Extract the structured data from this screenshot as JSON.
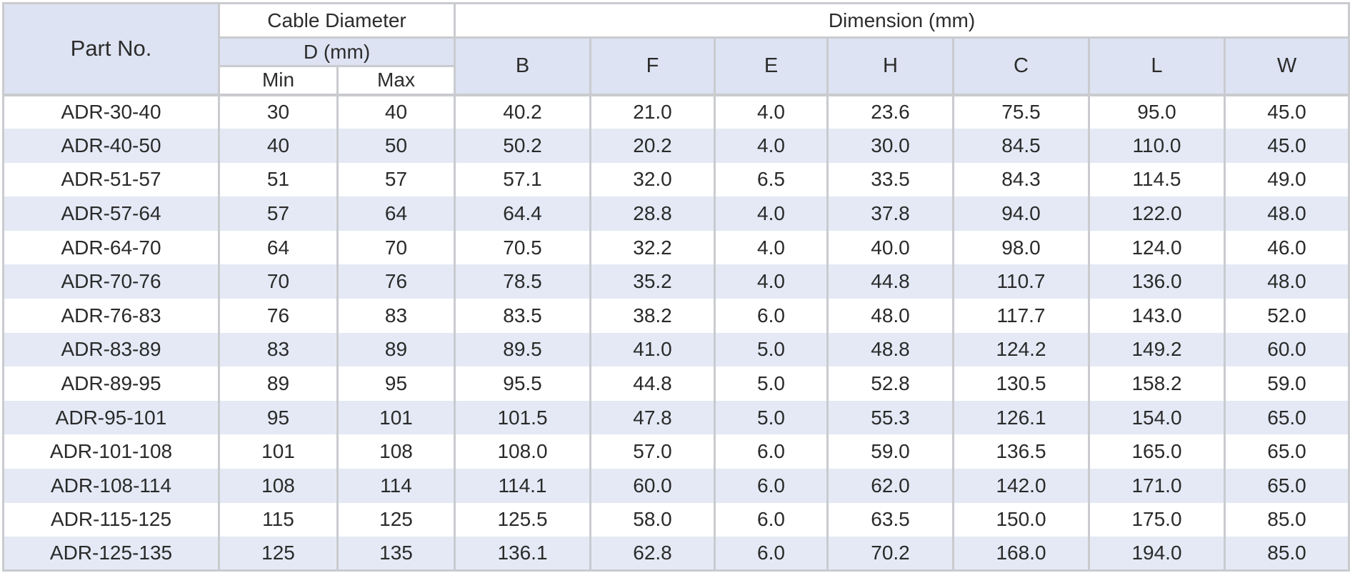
{
  "header": {
    "part_no": "Part No.",
    "cable_diameter": "Cable Diameter",
    "d_mm": "D (mm)",
    "min": "Min",
    "max": "Max",
    "dimension": "Dimension (mm)",
    "dims": [
      "B",
      "F",
      "E",
      "H",
      "C",
      "L",
      "W"
    ]
  },
  "rows": [
    {
      "part": "ADR-30-40",
      "min": "30",
      "max": "40",
      "B": "40.2",
      "F": "21.0",
      "E": "4.0",
      "H": "23.6",
      "C": "75.5",
      "L": "95.0",
      "W": "45.0"
    },
    {
      "part": "ADR-40-50",
      "min": "40",
      "max": "50",
      "B": "50.2",
      "F": "20.2",
      "E": "4.0",
      "H": "30.0",
      "C": "84.5",
      "L": "110.0",
      "W": "45.0"
    },
    {
      "part": "ADR-51-57",
      "min": "51",
      "max": "57",
      "B": "57.1",
      "F": "32.0",
      "E": "6.5",
      "H": "33.5",
      "C": "84.3",
      "L": "114.5",
      "W": "49.0"
    },
    {
      "part": "ADR-57-64",
      "min": "57",
      "max": "64",
      "B": "64.4",
      "F": "28.8",
      "E": "4.0",
      "H": "37.8",
      "C": "94.0",
      "L": "122.0",
      "W": "48.0"
    },
    {
      "part": "ADR-64-70",
      "min": "64",
      "max": "70",
      "B": "70.5",
      "F": "32.2",
      "E": "4.0",
      "H": "40.0",
      "C": "98.0",
      "L": "124.0",
      "W": "46.0"
    },
    {
      "part": "ADR-70-76",
      "min": "70",
      "max": "76",
      "B": "78.5",
      "F": "35.2",
      "E": "4.0",
      "H": "44.8",
      "C": "110.7",
      "L": "136.0",
      "W": "48.0"
    },
    {
      "part": "ADR-76-83",
      "min": "76",
      "max": "83",
      "B": "83.5",
      "F": "38.2",
      "E": "6.0",
      "H": "48.0",
      "C": "117.7",
      "L": "143.0",
      "W": "52.0"
    },
    {
      "part": "ADR-83-89",
      "min": "83",
      "max": "89",
      "B": "89.5",
      "F": "41.0",
      "E": "5.0",
      "H": "48.8",
      "C": "124.2",
      "L": "149.2",
      "W": "60.0"
    },
    {
      "part": "ADR-89-95",
      "min": "89",
      "max": "95",
      "B": "95.5",
      "F": "44.8",
      "E": "5.0",
      "H": "52.8",
      "C": "130.5",
      "L": "158.2",
      "W": "59.0"
    },
    {
      "part": "ADR-95-101",
      "min": "95",
      "max": "101",
      "B": "101.5",
      "F": "47.8",
      "E": "5.0",
      "H": "55.3",
      "C": "126.1",
      "L": "154.0",
      "W": "65.0"
    },
    {
      "part": "ADR-101-108",
      "min": "101",
      "max": "108",
      "B": "108.0",
      "F": "57.0",
      "E": "6.0",
      "H": "59.0",
      "C": "136.5",
      "L": "165.0",
      "W": "65.0"
    },
    {
      "part": "ADR-108-114",
      "min": "108",
      "max": "114",
      "B": "114.1",
      "F": "60.0",
      "E": "6.0",
      "H": "62.0",
      "C": "142.0",
      "L": "171.0",
      "W": "65.0"
    },
    {
      "part": "ADR-115-125",
      "min": "115",
      "max": "125",
      "B": "125.5",
      "F": "58.0",
      "E": "6.0",
      "H": "63.5",
      "C": "150.0",
      "L": "175.0",
      "W": "85.0"
    },
    {
      "part": "ADR-125-135",
      "min": "125",
      "max": "135",
      "B": "136.1",
      "F": "62.8",
      "E": "6.0",
      "H": "70.2",
      "C": "168.0",
      "L": "194.0",
      "W": "85.0"
    }
  ],
  "colors": {
    "header_bg": "#dde3f2",
    "stripe_bg": "#e4e9f5",
    "border": "#c9cbcf",
    "text": "#2a2a2a"
  }
}
